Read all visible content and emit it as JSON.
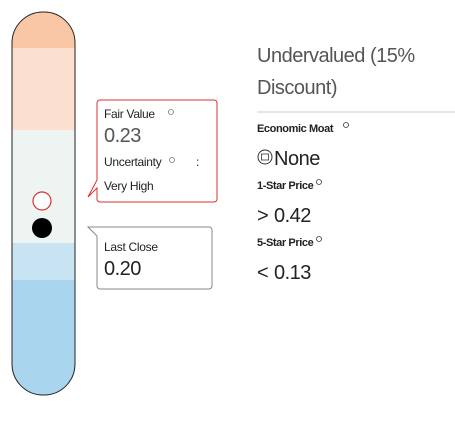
{
  "valuation": "Undervalued (15% Discount)",
  "valuation_lines": [
    "Undervalued (15%",
    "Discount)"
  ],
  "fair_value": {
    "label": "Fair Value",
    "value": "0.23",
    "uncertainty_label": "Uncertainty",
    "separator": ":",
    "uncertainty": "Very High"
  },
  "last_close": {
    "label": "Last Close",
    "value": "0.20"
  },
  "economic_moat": {
    "label": "Economic Moat",
    "value": "None"
  },
  "one_star_price": {
    "label": "1-Star Price",
    "symbol": ">",
    "value": "0.42"
  },
  "five_star_price": {
    "label": "5-Star Price",
    "symbol": "<",
    "value": "0.13"
  }
}
